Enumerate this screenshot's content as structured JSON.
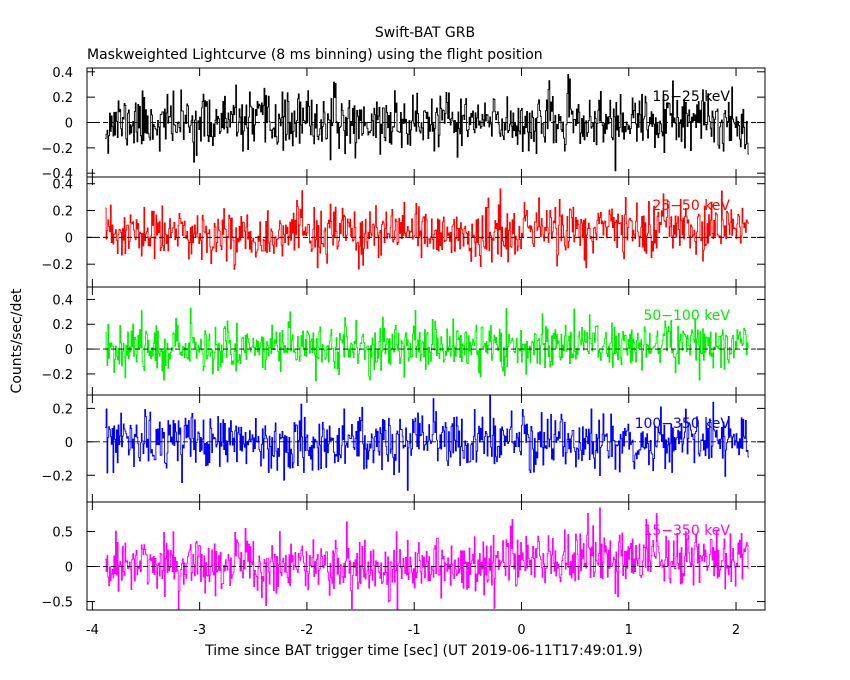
{
  "chart_data": {
    "type": "line",
    "title": "Swift-BAT GRB",
    "subtitle": "Maskweighted Lightcurve (8 ms binning) using the flight position",
    "xlabel": "Time since BAT trigger time [sec] (UT 2019-06-11T17:49:01.9)",
    "ylabel": "Counts/sec/det",
    "xlim": [
      -4.05,
      2.27
    ],
    "x_ticks": [
      "-4",
      "-3",
      "-2",
      "-1",
      "0",
      "1",
      "2"
    ],
    "x_tick_values": [
      -4,
      -3,
      -2,
      -1,
      0,
      1,
      2
    ],
    "bin_width_sec": 0.008,
    "x_range": [
      -3.88,
      2.12
    ],
    "line_style": "histogram-step",
    "zero_line": "dashed",
    "panels": [
      {
        "name": "15-25 keV",
        "label_text": "15−25 keV",
        "color": "#000000",
        "ylim": [
          -0.43,
          0.43
        ],
        "y_ticks": [
          "−0.4",
          "−0.2",
          "0",
          "0.2",
          "0.4"
        ],
        "y_tick_values": [
          -0.4,
          -0.2,
          0,
          0.2,
          0.4
        ],
        "noise_sigma": 0.11,
        "mean": 0.0,
        "late_mean": 0.0,
        "seed": 11
      },
      {
        "name": "25-50 keV",
        "label_text": "25−50 keV",
        "color": "#ff0000",
        "ylim": [
          -0.37,
          0.45
        ],
        "y_ticks": [
          "−0.2",
          "0",
          "0.2",
          "0.4"
        ],
        "y_tick_values": [
          -0.2,
          0,
          0.2,
          0.4
        ],
        "noise_sigma": 0.1,
        "mean": 0.02,
        "late_mean": 0.06,
        "seed": 23
      },
      {
        "name": "50-100 keV",
        "label_text": "50−100 keV",
        "color": "#00ee00",
        "ylim": [
          -0.37,
          0.5
        ],
        "y_ticks": [
          "−0.2",
          "0",
          "0.2",
          "0.4"
        ],
        "y_tick_values": [
          -0.2,
          0,
          0.2,
          0.4
        ],
        "noise_sigma": 0.1,
        "mean": 0.02,
        "late_mean": 0.04,
        "seed": 37
      },
      {
        "name": "100-350 keV",
        "label_text": "100−350 keV",
        "color": "#0000ff",
        "ylim": [
          -0.36,
          0.28
        ],
        "y_ticks": [
          "−0.2",
          "0",
          "0.2"
        ],
        "y_tick_values": [
          -0.2,
          0,
          0.2
        ],
        "noise_sigma": 0.085,
        "mean": 0.0,
        "late_mean": 0.0,
        "seed": 53
      },
      {
        "name": "15-350 keV",
        "label_text": "15−350 keV",
        "color": "#ff00ff",
        "ylim": [
          -0.62,
          0.92
        ],
        "y_ticks": [
          "−0.5",
          "0",
          "0.5"
        ],
        "y_tick_values": [
          -0.5,
          0,
          0.5
        ],
        "noise_sigma": 0.21,
        "mean": 0.02,
        "late_mean": 0.12,
        "seed": 71
      }
    ]
  }
}
